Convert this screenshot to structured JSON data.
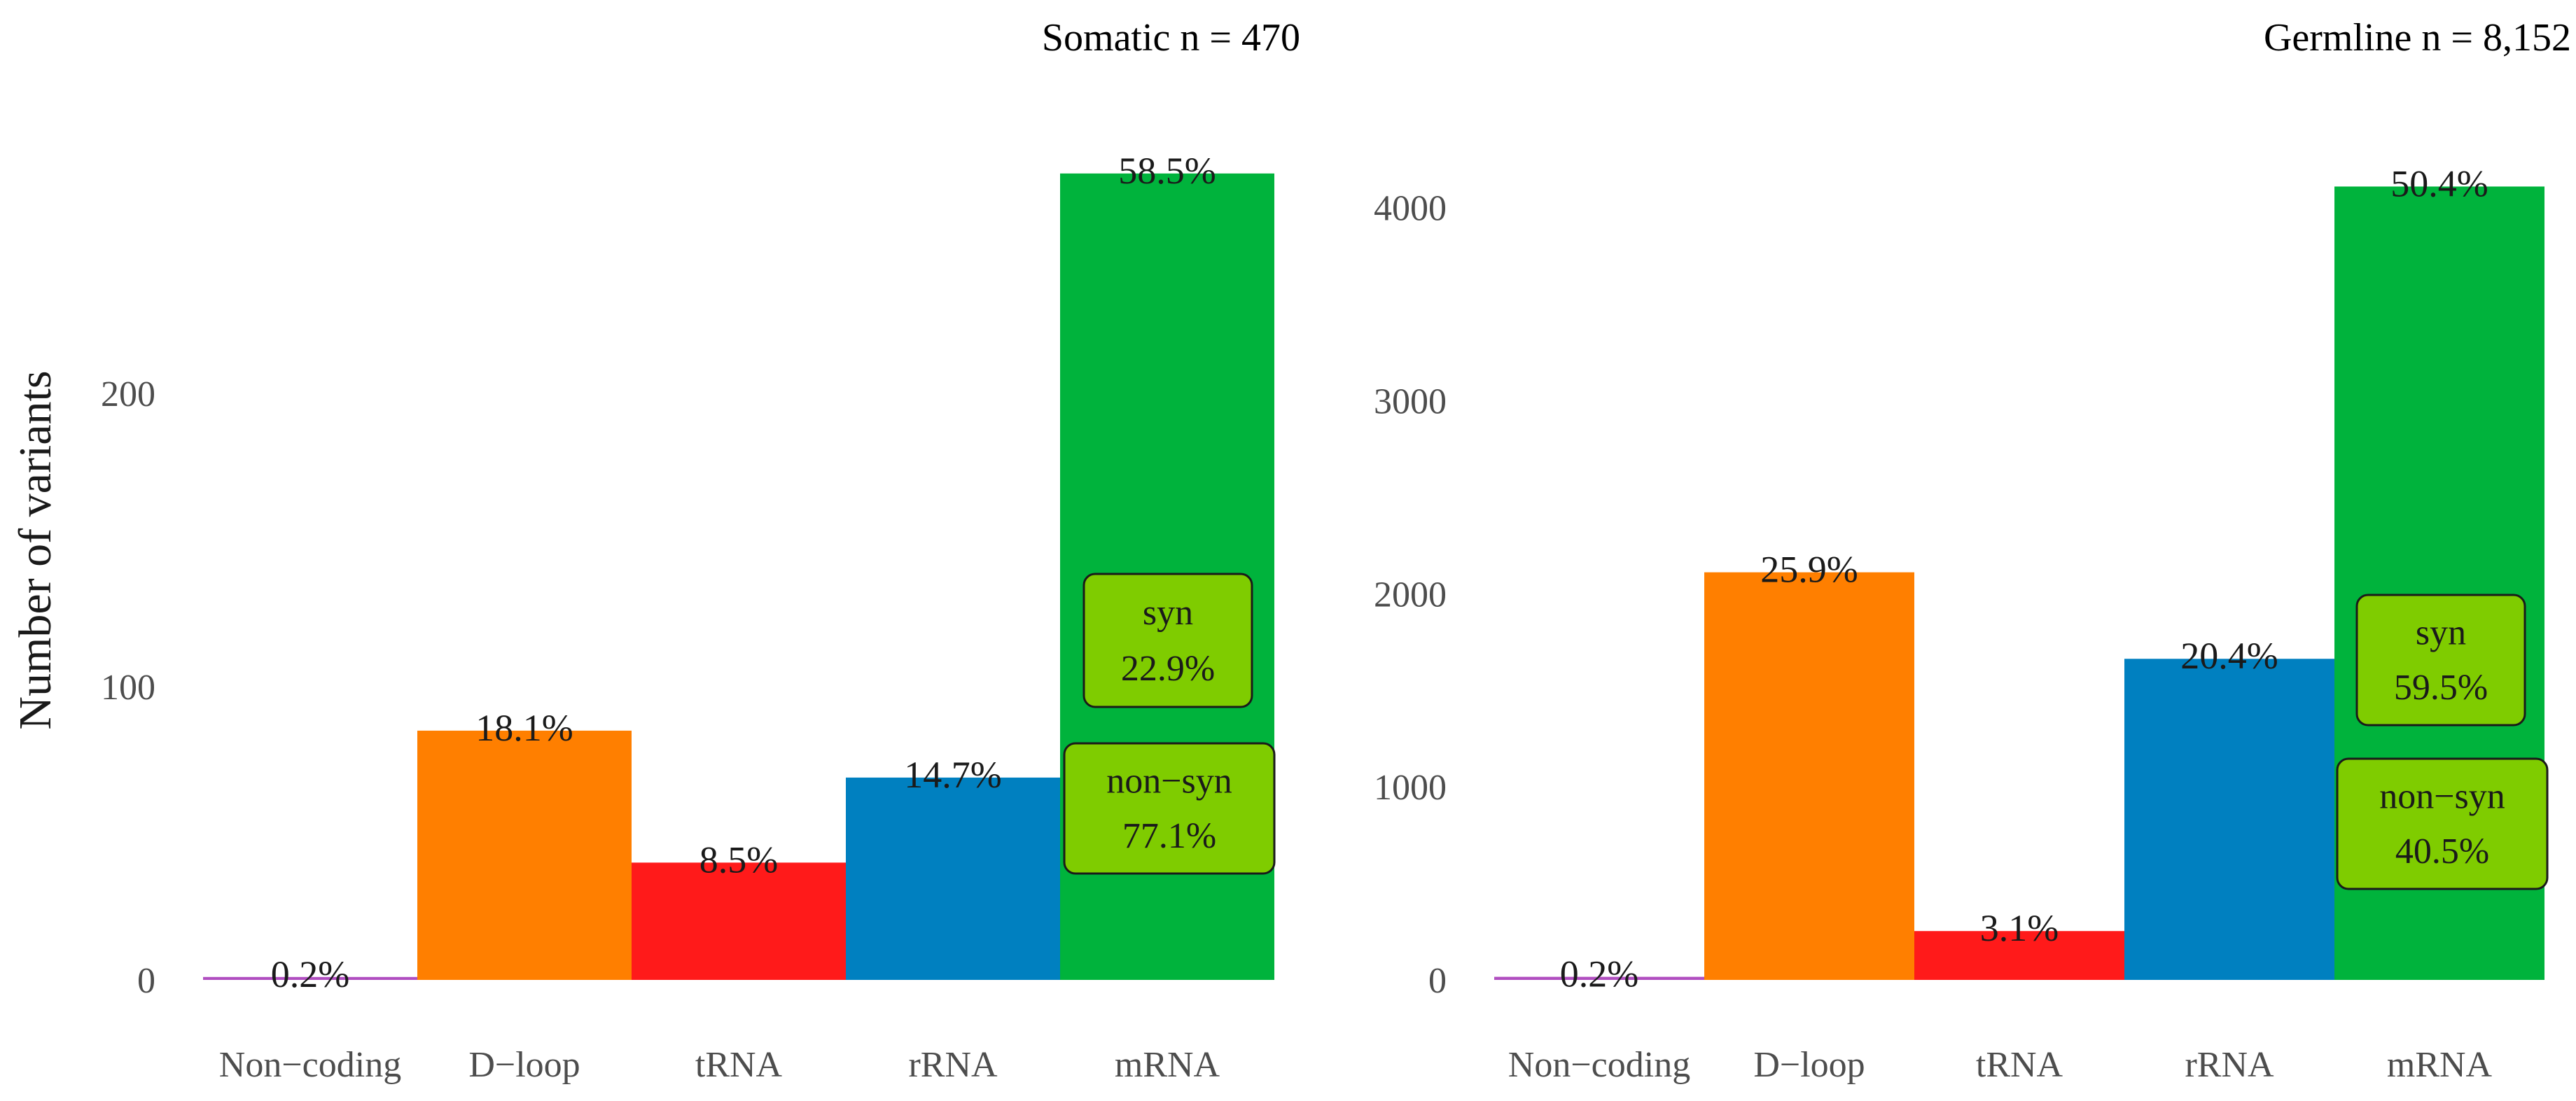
{
  "chart_data": [
    {
      "type": "bar",
      "title": "Somatic n = 470",
      "ylabel": "Number of variants",
      "xlabel": "",
      "categories": [
        "Non−coding",
        "D−loop",
        "tRNA",
        "rRNA",
        "mRNA"
      ],
      "values": [
        1,
        85,
        40,
        69,
        275
      ],
      "labels": [
        "0.2%",
        "18.1%",
        "8.5%",
        "14.7%",
        "58.5%"
      ],
      "colors": [
        "#b04ec0",
        "#ff7f00",
        "#ff1a1a",
        "#0080c0",
        "#00b33c"
      ],
      "ylim": [
        0,
        290
      ],
      "yticks": [
        0,
        100,
        200
      ],
      "annotations": [
        {
          "text1": "syn",
          "text2": "22.9%"
        },
        {
          "text1": "non−syn",
          "text2": "77.1%"
        }
      ]
    },
    {
      "type": "bar",
      "title": "Germline n = 8,152",
      "ylabel": "",
      "xlabel": "",
      "categories": [
        "Non−coding",
        "D−loop",
        "tRNA",
        "rRNA",
        "mRNA"
      ],
      "values": [
        16,
        2111,
        253,
        1663,
        4109
      ],
      "labels": [
        "0.2%",
        "25.9%",
        "3.1%",
        "20.4%",
        "50.4%"
      ],
      "colors": [
        "#b04ec0",
        "#ff7f00",
        "#ff1a1a",
        "#0080c0",
        "#00b33c"
      ],
      "ylim": [
        0,
        4350
      ],
      "yticks": [
        0,
        1000,
        2000,
        3000,
        4000
      ],
      "annotations": [
        {
          "text1": "syn",
          "text2": "59.5%"
        },
        {
          "text1": "non−syn",
          "text2": "40.5%"
        }
      ]
    }
  ],
  "colors": {
    "annotation_fill": "#7fcc00",
    "annotation_stroke": "#1a1a1a"
  }
}
